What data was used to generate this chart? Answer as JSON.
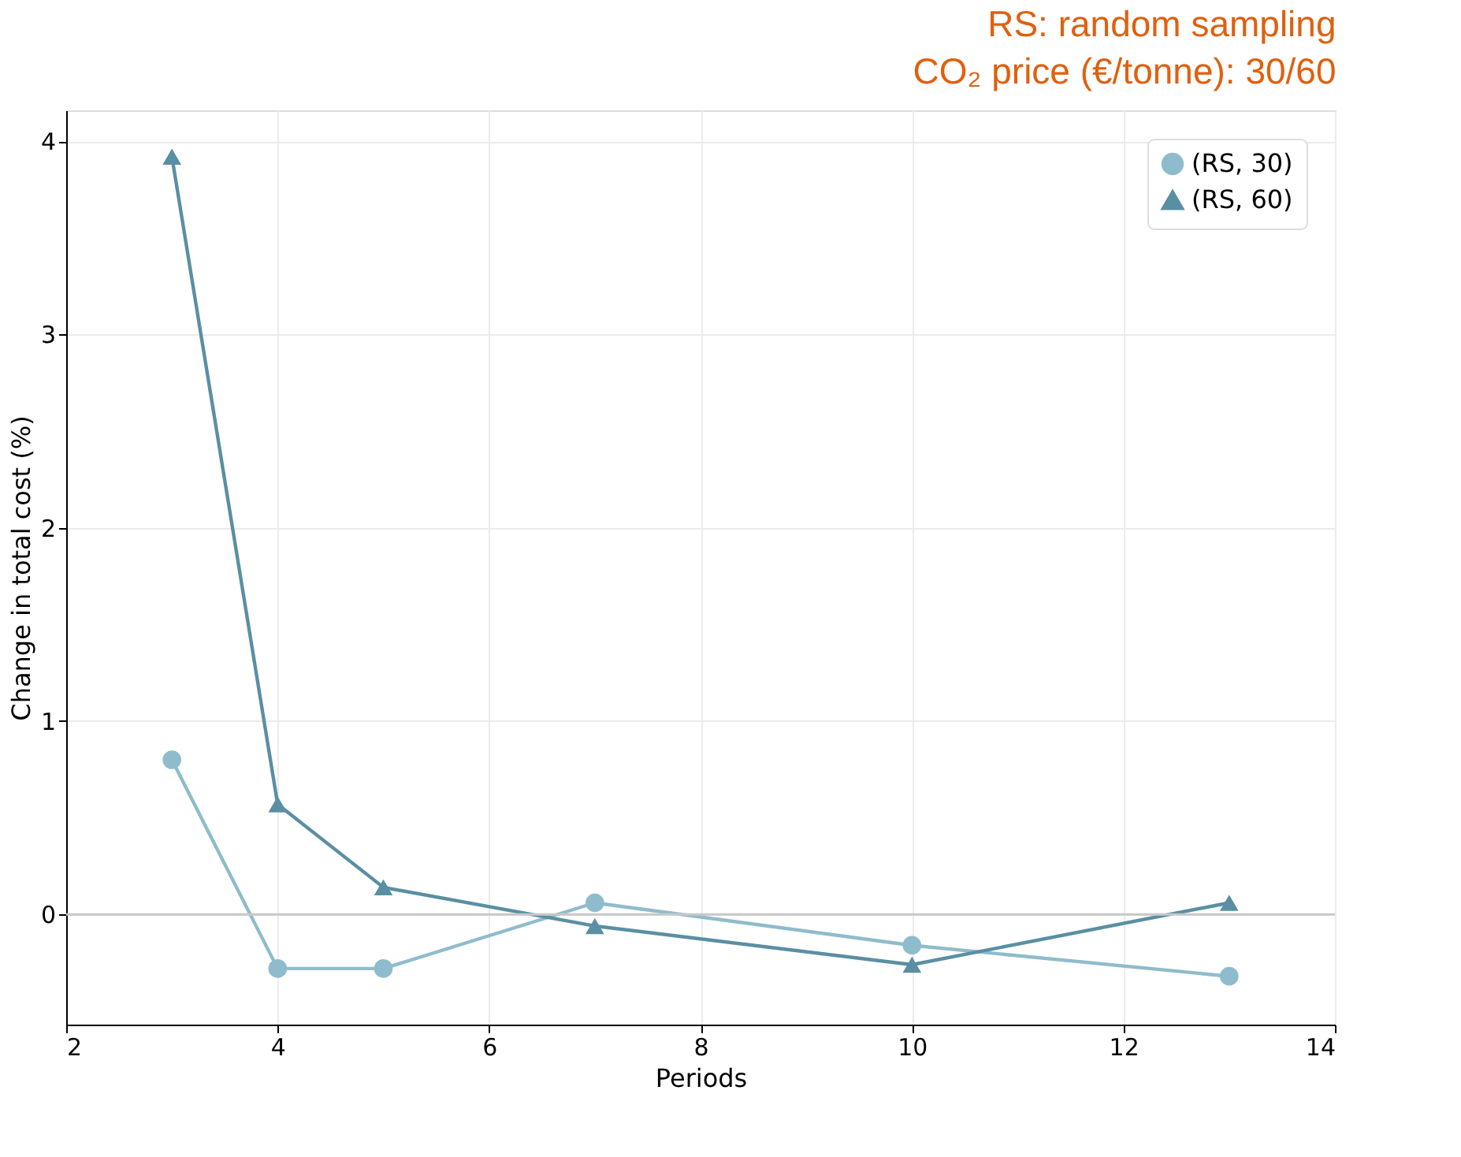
{
  "chart_data": {
    "type": "line",
    "xlabel": "Periods",
    "ylabel": "Change in total cost (%)",
    "annotations": [
      "RS: random sampling",
      "CO₂ price (€/tonne): 30/60"
    ],
    "x": [
      3,
      4,
      5,
      7,
      10,
      13
    ],
    "series": [
      {
        "name": "(RS, 30)",
        "color": "#8fbccc",
        "marker": "circle",
        "values": [
          0.8,
          -0.28,
          -0.28,
          0.06,
          -0.16,
          -0.32
        ]
      },
      {
        "name": "(RS, 60)",
        "color": "#5a8fa3",
        "marker": "triangle",
        "values": [
          3.92,
          0.57,
          0.14,
          -0.06,
          -0.26,
          0.06
        ]
      }
    ],
    "xlim": [
      2,
      14
    ],
    "xticks": [
      2,
      4,
      6,
      8,
      10,
      12,
      14
    ],
    "ylim": [
      -0.57,
      4.16
    ],
    "yticks": [
      0,
      1,
      2,
      3,
      4
    ],
    "ref_lines": [
      {
        "axis": "y",
        "value": 0,
        "color": "#c8c8c8"
      }
    ],
    "grid": true,
    "legend": "top right",
    "line_style": "solid"
  }
}
